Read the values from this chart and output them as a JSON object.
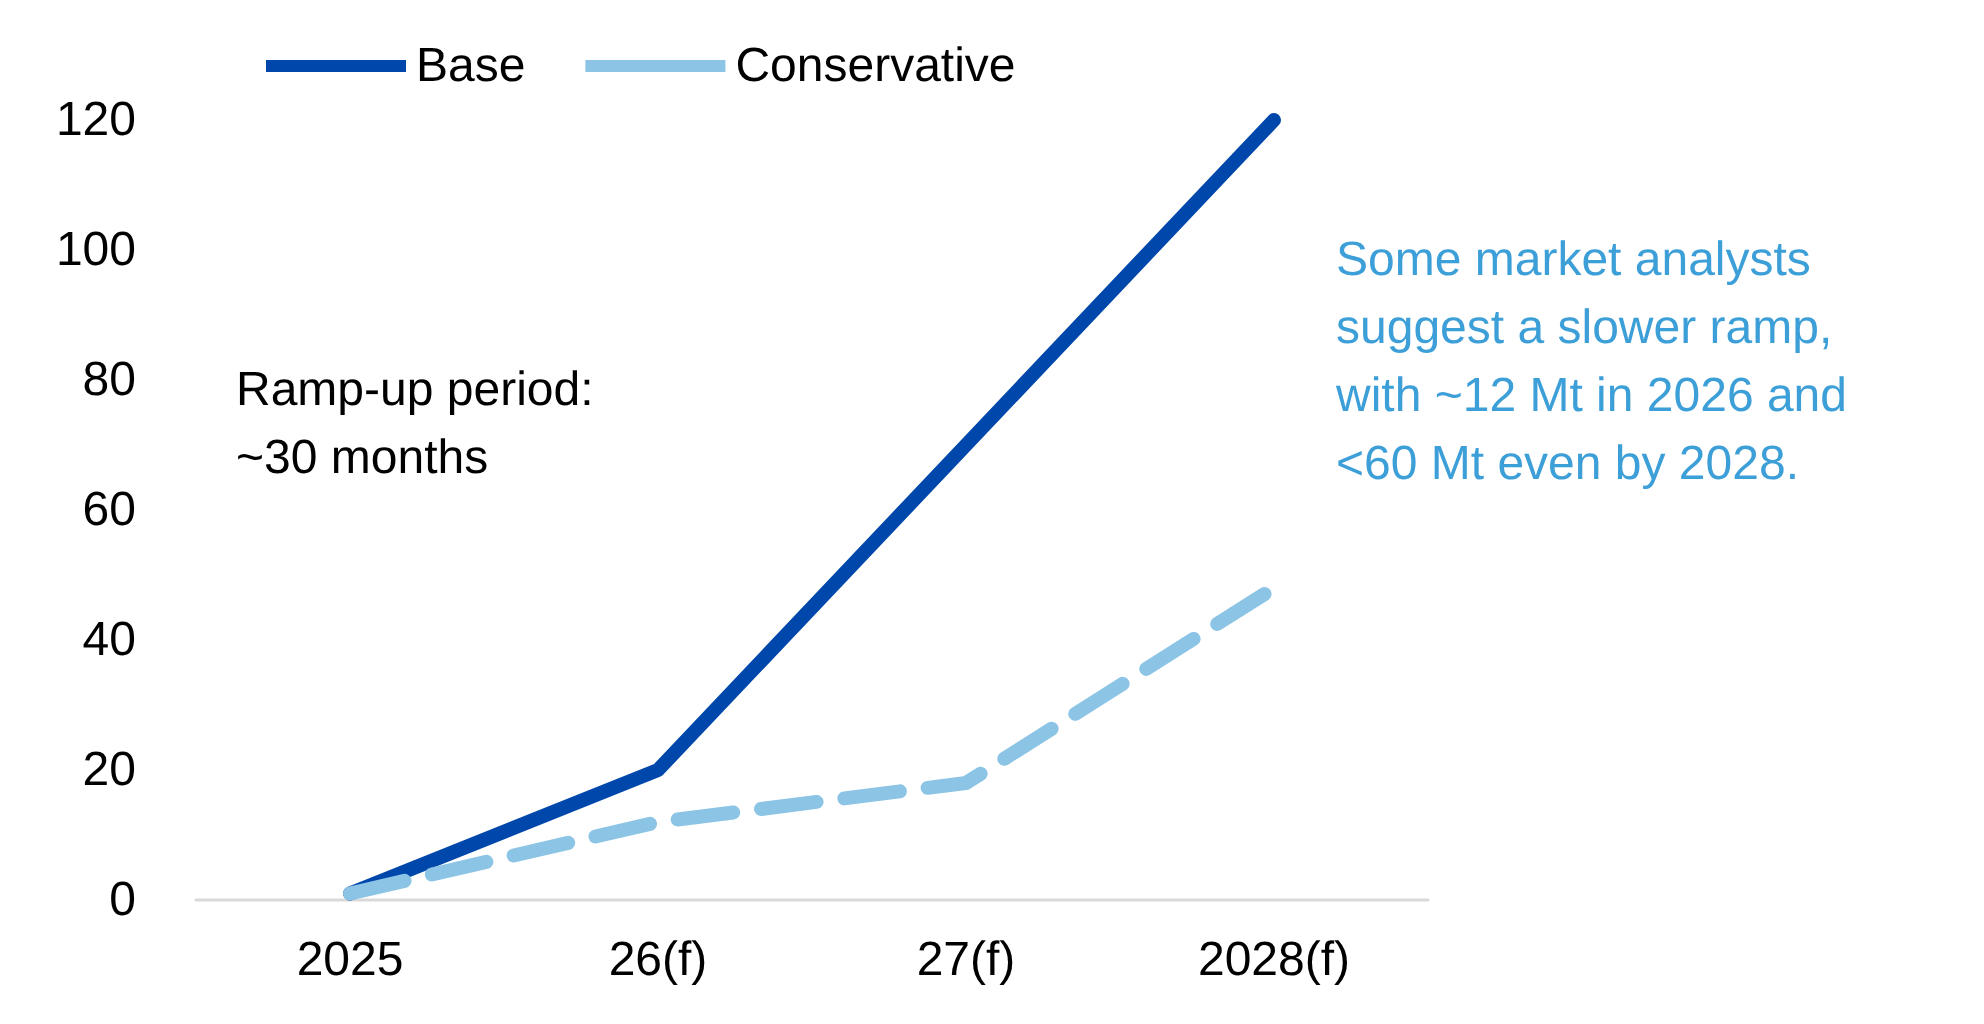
{
  "chart_data": {
    "type": "line",
    "categories": [
      "2025",
      "26(f)",
      "27(f)",
      "2028(f)"
    ],
    "series": [
      {
        "name": "Base",
        "color": "#0047ab",
        "values": [
          1,
          20,
          70,
          120
        ],
        "line_style": "solid"
      },
      {
        "name": "Conservative",
        "color": "#8cc4e6",
        "values": [
          1,
          12,
          18,
          48
        ],
        "line_style": "dashed"
      }
    ],
    "ylim": [
      0,
      120
    ],
    "yticks": [
      0,
      20,
      40,
      60,
      80,
      100,
      120
    ],
    "grid": false,
    "legend": "top left",
    "marker": "none",
    "annotations": [
      "Ramp-up period:\n~30 months",
      "Some market analysts\nsuggest a slower ramp,\nwith ~12 Mt in 2026 and\n<60 Mt even by 2028."
    ]
  }
}
